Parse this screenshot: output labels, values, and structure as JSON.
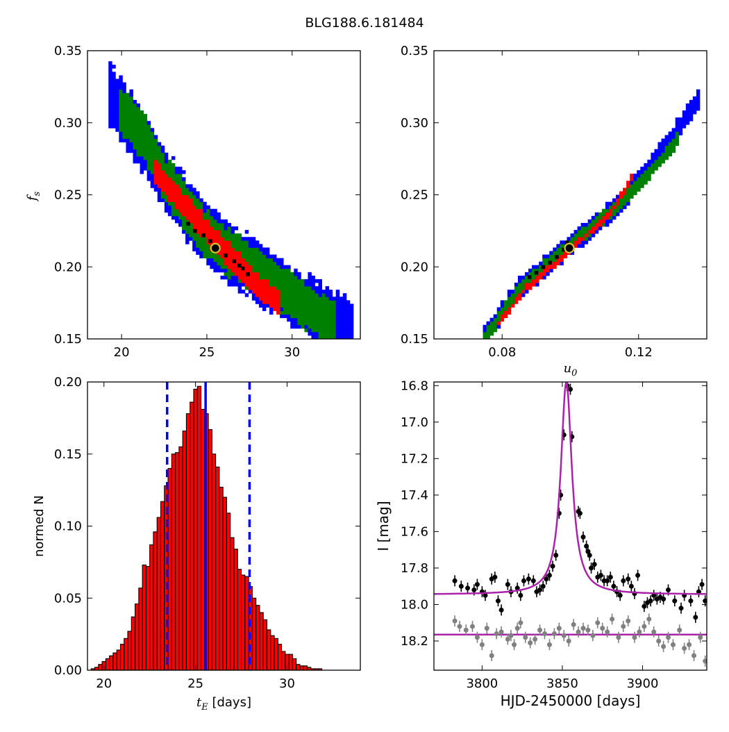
{
  "figure": {
    "title": "BLG188.6.181484"
  },
  "colors": {
    "sigma3": "#0000ff",
    "sigma2": "#008000",
    "sigma1": "#ff0000",
    "best": "#000000",
    "marker": "#d4c434",
    "hist": "#ff0000",
    "vline": "#0000ff",
    "model": "#aa22aa",
    "data_top": "#000000",
    "data_bottom": "#808080"
  },
  "chart_data": [
    {
      "id": "tE_vs_fs",
      "type": "heatmap",
      "xlabel": "",
      "ylabel": "f_s",
      "xlim": [
        18,
        34
      ],
      "ylim": [
        0.15,
        0.35
      ],
      "xticks": [
        20,
        25,
        30
      ],
      "yticks": [
        0.15,
        0.2,
        0.25,
        0.3,
        0.35
      ],
      "ytick_labels": [
        "0.15",
        "0.20",
        "0.25",
        "0.30",
        "0.35"
      ],
      "grid": false,
      "regions": [
        {
          "name": "3-sigma",
          "color": "blue",
          "band": [
            [
              19.3,
              0.32
            ],
            [
              20.5,
              0.3
            ],
            [
              22.5,
              0.262
            ],
            [
              24.5,
              0.229
            ],
            [
              26.5,
              0.208
            ],
            [
              28.5,
              0.192
            ],
            [
              30.5,
              0.175
            ],
            [
              33.5,
              0.155
            ]
          ],
          "half_width": 0.0205
        },
        {
          "name": "2-sigma",
          "color": "green",
          "band": [
            [
              19.9,
              0.31
            ],
            [
              21.2,
              0.292
            ],
            [
              22.5,
              0.262
            ],
            [
              24.5,
              0.229
            ],
            [
              26.5,
              0.208
            ],
            [
              28.5,
              0.192
            ],
            [
              30.5,
              0.175
            ],
            [
              32.5,
              0.16
            ]
          ],
          "half_width": 0.0155
        },
        {
          "name": "1-sigma",
          "color": "red",
          "band": [
            [
              22.0,
              0.265
            ],
            [
              23.5,
              0.246
            ],
            [
              25.0,
              0.225
            ],
            [
              26.5,
              0.206
            ],
            [
              28.0,
              0.186
            ],
            [
              29.2,
              0.175
            ]
          ],
          "half_width": 0.0085
        }
      ],
      "best_cells": [
        [
          24.8,
          0.222
        ],
        [
          25.2,
          0.218
        ],
        [
          25.6,
          0.212
        ],
        [
          26.1,
          0.208
        ],
        [
          26.6,
          0.204
        ],
        [
          27.1,
          0.199
        ],
        [
          24.3,
          0.225
        ],
        [
          26.9,
          0.201
        ],
        [
          27.4,
          0.195
        ],
        [
          23.9,
          0.23
        ]
      ],
      "marker": {
        "x": 25.5,
        "y": 0.213
      }
    },
    {
      "id": "u0_vs_fs",
      "type": "heatmap",
      "xlabel": "u_0",
      "ylabel": "",
      "xlim": [
        0.06,
        0.14
      ],
      "ylim": [
        0.15,
        0.35
      ],
      "xticks": [
        0.08,
        0.12
      ],
      "xtick_labels": [
        "0.08",
        "0.12"
      ],
      "yticks": [
        0.15,
        0.2,
        0.25,
        0.3,
        0.35
      ],
      "ytick_labels": [
        "0.15",
        "0.20",
        "0.25",
        "0.30",
        "0.35"
      ],
      "grid": false,
      "regions": [
        {
          "name": "3-sigma",
          "color": "blue",
          "band": [
            [
              0.0745,
              0.15
            ],
            [
              0.085,
              0.185
            ],
            [
              0.1,
              0.215
            ],
            [
              0.115,
              0.245
            ],
            [
              0.13,
              0.29
            ],
            [
              0.138,
              0.318
            ]
          ],
          "half_width": 0.007
        },
        {
          "name": "2-sigma",
          "color": "green",
          "band": [
            [
              0.0745,
              0.15
            ],
            [
              0.085,
              0.185
            ],
            [
              0.1,
              0.215
            ],
            [
              0.115,
              0.245
            ],
            [
              0.125,
              0.27
            ],
            [
              0.132,
              0.29
            ]
          ],
          "half_width": 0.0048
        },
        {
          "name": "1-sigma",
          "color": "red",
          "band": [
            [
              0.078,
              0.158
            ],
            [
              0.087,
              0.185
            ],
            [
              0.1,
              0.212
            ],
            [
              0.112,
              0.238
            ],
            [
              0.118,
              0.262
            ]
          ],
          "half_width": 0.0022
        }
      ],
      "best_cells": [
        [
          0.096,
          0.207
        ],
        [
          0.098,
          0.212
        ],
        [
          0.094,
          0.203
        ],
        [
          0.092,
          0.2
        ],
        [
          0.09,
          0.196
        ],
        [
          0.099,
          0.217
        ],
        [
          0.088,
          0.193
        ]
      ],
      "marker": {
        "x": 0.0997,
        "y": 0.213
      }
    },
    {
      "id": "tE_histogram",
      "type": "bar",
      "xlabel": "t_E [days]",
      "ylabel": "normed N",
      "xlim": [
        19.1,
        34.0
      ],
      "ylim": [
        0,
        0.2
      ],
      "xticks": [
        20,
        25,
        30
      ],
      "yticks": [
        0,
        0.05,
        0.1,
        0.15,
        0.2
      ],
      "ytick_labels": [
        "0.00",
        "0.05",
        "0.10",
        "0.15",
        "0.20"
      ],
      "bin_start": 19.3,
      "bin_width": 0.2,
      "values": [
        0.001,
        0.002,
        0.004,
        0.006,
        0.008,
        0.01,
        0.012,
        0.014,
        0.018,
        0.022,
        0.027,
        0.037,
        0.046,
        0.057,
        0.073,
        0.072,
        0.087,
        0.096,
        0.106,
        0.117,
        0.128,
        0.14,
        0.15,
        0.151,
        0.155,
        0.166,
        0.178,
        0.186,
        0.195,
        0.197,
        0.181,
        0.178,
        0.167,
        0.15,
        0.141,
        0.127,
        0.12,
        0.109,
        0.092,
        0.084,
        0.07,
        0.066,
        0.065,
        0.058,
        0.05,
        0.045,
        0.04,
        0.035,
        0.028,
        0.024,
        0.022,
        0.018,
        0.013,
        0.011,
        0.011,
        0.008,
        0.004,
        0.003,
        0.003,
        0.002,
        0.001,
        0.001,
        0.001,
        0.0
      ],
      "vlines": [
        {
          "x": 25.55,
          "style": "solid"
        },
        {
          "x": 23.45,
          "style": "dashed"
        },
        {
          "x": 27.95,
          "style": "dashed"
        }
      ]
    },
    {
      "id": "light_curve",
      "type": "scatter",
      "xlabel": "HJD-2450000 [days]",
      "ylabel": "I [mag]",
      "xlim": [
        3770,
        3940
      ],
      "ylim": [
        18.36,
        16.78
      ],
      "y_inverted": true,
      "xticks": [
        3800,
        3850,
        3900
      ],
      "yticks": [
        16.8,
        17.0,
        17.2,
        17.4,
        17.6,
        17.8,
        18.0,
        18.2
      ],
      "ytick_labels": [
        "16.8",
        "17.0",
        "17.2",
        "17.4",
        "17.6",
        "17.8",
        "18.0",
        "18.2"
      ],
      "model": {
        "peak_time": 3852.5,
        "peak_mag": 16.78,
        "baseline": 17.945,
        "width": 4.2
      },
      "baseline_line": {
        "mag": 18.165
      },
      "series": [
        {
          "color": "black",
          "points": [
            [
              3783,
              17.87
            ],
            [
              3787,
              17.9
            ],
            [
              3791,
              17.91
            ],
            [
              3795,
              17.92
            ],
            [
              3797,
              17.89
            ],
            [
              3800,
              17.93
            ],
            [
              3802,
              17.95
            ],
            [
              3806,
              17.86
            ],
            [
              3808,
              17.85
            ],
            [
              3810,
              17.98
            ],
            [
              3812,
              18.03
            ],
            [
              3816,
              17.89
            ],
            [
              3818,
              17.93
            ],
            [
              3822,
              17.91
            ],
            [
              3824,
              17.95
            ],
            [
              3826,
              17.87
            ],
            [
              3829,
              17.86
            ],
            [
              3832,
              17.87
            ],
            [
              3834,
              17.93
            ],
            [
              3836,
              17.92
            ],
            [
              3838,
              17.9
            ],
            [
              3840,
              17.86
            ],
            [
              3842,
              17.84
            ],
            [
              3844,
              17.79
            ],
            [
              3846,
              17.73
            ],
            [
              3848,
              17.5
            ],
            [
              3849,
              17.4
            ],
            [
              3851,
              17.07
            ],
            [
              3853,
              16.8
            ],
            [
              3855,
              16.82
            ],
            [
              3856,
              17.08
            ],
            [
              3860,
              17.49
            ],
            [
              3861,
              17.5
            ],
            [
              3863,
              17.63
            ],
            [
              3865,
              17.68
            ],
            [
              3866,
              17.71
            ],
            [
              3867,
              17.73
            ],
            [
              3868,
              17.8
            ],
            [
              3870,
              17.78
            ],
            [
              3872,
              17.85
            ],
            [
              3874,
              17.84
            ],
            [
              3876,
              17.87
            ],
            [
              3878,
              17.87
            ],
            [
              3880,
              17.85
            ],
            [
              3882,
              17.9
            ],
            [
              3884,
              17.93
            ],
            [
              3886,
              17.95
            ],
            [
              3888,
              17.87
            ],
            [
              3891,
              17.86
            ],
            [
              3893,
              17.9
            ],
            [
              3895,
              17.94
            ],
            [
              3897,
              17.84
            ],
            [
              3901,
              18.01
            ],
            [
              3903,
              17.99
            ],
            [
              3905,
              17.98
            ],
            [
              3907,
              17.95
            ],
            [
              3909,
              17.97
            ],
            [
              3911,
              17.96
            ],
            [
              3913,
              17.97
            ],
            [
              3916,
              17.92
            ],
            [
              3920,
              17.98
            ],
            [
              3924,
              18.02
            ],
            [
              3926,
              17.95
            ],
            [
              3930,
              17.98
            ],
            [
              3933,
              18.07
            ],
            [
              3935,
              17.93
            ],
            [
              3937,
              17.89
            ],
            [
              3939,
              17.98
            ]
          ]
        },
        {
          "color": "gray",
          "points": [
            [
              3783,
              18.09
            ],
            [
              3786,
              18.12
            ],
            [
              3790,
              18.14
            ],
            [
              3794,
              18.12
            ],
            [
              3797,
              18.18
            ],
            [
              3800,
              18.22
            ],
            [
              3803,
              18.13
            ],
            [
              3806,
              18.28
            ],
            [
              3809,
              18.16
            ],
            [
              3812,
              18.15
            ],
            [
              3816,
              18.19
            ],
            [
              3818,
              18.17
            ],
            [
              3820,
              18.22
            ],
            [
              3822,
              18.13
            ],
            [
              3824,
              18.1
            ],
            [
              3827,
              18.18
            ],
            [
              3830,
              18.21
            ],
            [
              3833,
              18.19
            ],
            [
              3836,
              18.14
            ],
            [
              3839,
              18.16
            ],
            [
              3842,
              18.22
            ],
            [
              3845,
              18.16
            ],
            [
              3848,
              18.13
            ],
            [
              3851,
              18.17
            ],
            [
              3854,
              18.2
            ],
            [
              3857,
              18.11
            ],
            [
              3860,
              18.15
            ],
            [
              3863,
              18.13
            ],
            [
              3866,
              18.14
            ],
            [
              3869,
              18.17
            ],
            [
              3872,
              18.1
            ],
            [
              3875,
              18.13
            ],
            [
              3878,
              18.15
            ],
            [
              3881,
              18.08
            ],
            [
              3885,
              18.18
            ],
            [
              3888,
              18.12
            ],
            [
              3891,
              18.09
            ],
            [
              3895,
              18.18
            ],
            [
              3898,
              18.15
            ],
            [
              3901,
              18.12
            ],
            [
              3904,
              18.08
            ],
            [
              3907,
              18.15
            ],
            [
              3910,
              18.2
            ],
            [
              3913,
              18.23
            ],
            [
              3916,
              18.18
            ],
            [
              3919,
              18.22
            ],
            [
              3923,
              18.14
            ],
            [
              3926,
              18.24
            ],
            [
              3929,
              18.22
            ],
            [
              3932,
              18.28
            ],
            [
              3936,
              18.18
            ],
            [
              3939,
              18.31
            ]
          ]
        }
      ]
    }
  ]
}
